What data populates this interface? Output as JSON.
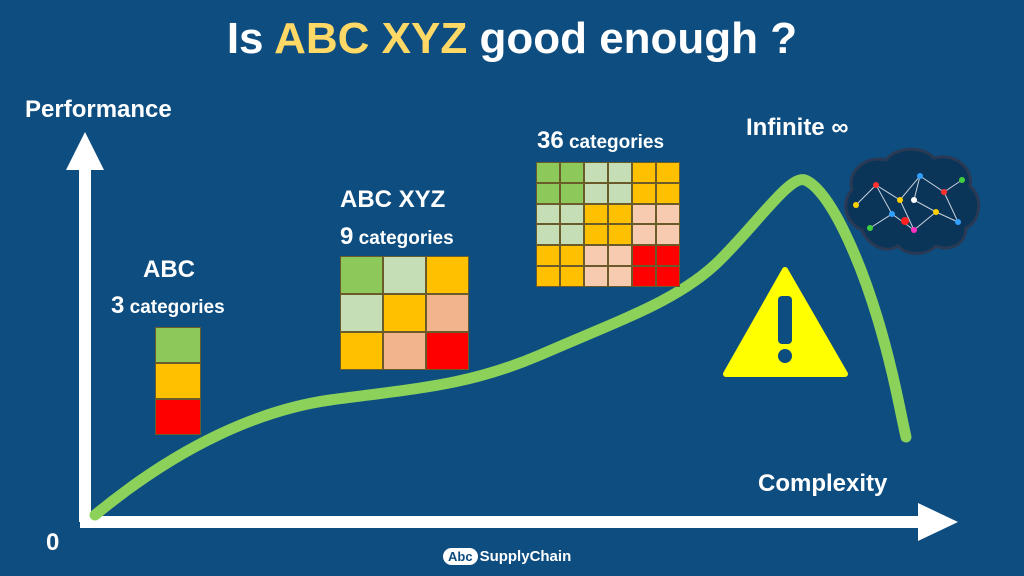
{
  "title": {
    "prefix": "Is ",
    "highlight": "ABC XYZ",
    "suffix": " good enough ?"
  },
  "colors": {
    "background": "#0d4d80",
    "curve": "#8cd15a",
    "axis": "#ffffff",
    "highlight": "#ffd966",
    "green": "#8cc85a",
    "light_green": "#c5deb5",
    "amber": "#ffc000",
    "peach": "#f2b48c",
    "light_peach": "#f6cbb0",
    "red": "#ff0000",
    "warning_yellow": "#ffff00"
  },
  "axes": {
    "y_label": "Performance",
    "x_label": "Complexity",
    "origin_label": "0"
  },
  "stages": [
    {
      "name": "ABC",
      "count": "3",
      "suffix": " categories",
      "colors": [
        "green",
        "amber",
        "red"
      ]
    },
    {
      "name": "ABC XYZ",
      "count": "9",
      "suffix": " categories",
      "colors": [
        "green",
        "light_green",
        "amber",
        "light_green",
        "amber",
        "peach",
        "amber",
        "peach",
        "red"
      ]
    },
    {
      "name": "",
      "count": "36",
      "suffix": " categories",
      "colors": [
        "green",
        "green",
        "light_green",
        "light_green",
        "amber",
        "amber",
        "green",
        "green",
        "light_green",
        "light_green",
        "amber",
        "amber",
        "light_green",
        "light_green",
        "amber",
        "amber",
        "light_peach",
        "light_peach",
        "light_green",
        "light_green",
        "amber",
        "amber",
        "light_peach",
        "light_peach",
        "amber",
        "amber",
        "light_peach",
        "light_peach",
        "red",
        "red",
        "amber",
        "amber",
        "light_peach",
        "light_peach",
        "red",
        "red"
      ]
    },
    {
      "name": "Infinite ∞"
    }
  ],
  "icons": {
    "warning": "warning-triangle-icon",
    "brain": "brain-network-icon"
  },
  "footer": {
    "logo_abc": "Abc",
    "logo_rest": "SupplyChain"
  }
}
